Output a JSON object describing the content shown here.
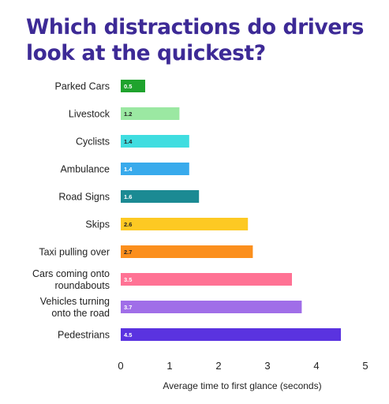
{
  "title_lines": [
    "Which distractions do drivers",
    "look at the quickest?"
  ],
  "chart_data": {
    "type": "bar",
    "orientation": "horizontal",
    "title": "Which distractions do drivers look at the quickest?",
    "xlabel": "Average time to first glance (seconds)",
    "ylabel": "",
    "xlim": [
      0,
      5
    ],
    "xticks": [
      "0",
      "1",
      "2",
      "3",
      "4",
      "5"
    ],
    "grid": false,
    "categories": [
      [
        "Parked Cars"
      ],
      [
        "Livestock"
      ],
      [
        "Cyclists"
      ],
      [
        "Ambulance"
      ],
      [
        "Road Signs"
      ],
      [
        "Skips"
      ],
      [
        "Taxi pulling over"
      ],
      [
        "Cars coming onto",
        "roundabouts"
      ],
      [
        "Vehicles turning",
        "onto the road"
      ],
      [
        "Pedestrians"
      ]
    ],
    "values": [
      0.5,
      1.2,
      1.4,
      1.4,
      1.6,
      2.6,
      2.7,
      3.5,
      3.7,
      4.5
    ],
    "value_labels": [
      "0.5",
      "1.2",
      "1.4",
      "1.4",
      "1.6",
      "2.6",
      "2.7",
      "3.5",
      "3.7",
      "4.5"
    ],
    "colors": [
      "#1fa32d",
      "#9be8a2",
      "#3fdde0",
      "#38aaec",
      "#1b8a93",
      "#fdc923",
      "#fb8f1d",
      "#ff7294",
      "#a06ee8",
      "#5a33e0"
    ],
    "label_colors": [
      "#ffffff",
      "#222222",
      "#222222",
      "#ffffff",
      "#ffffff",
      "#222222",
      "#222222",
      "#ffffff",
      "#ffffff",
      "#ffffff"
    ]
  }
}
